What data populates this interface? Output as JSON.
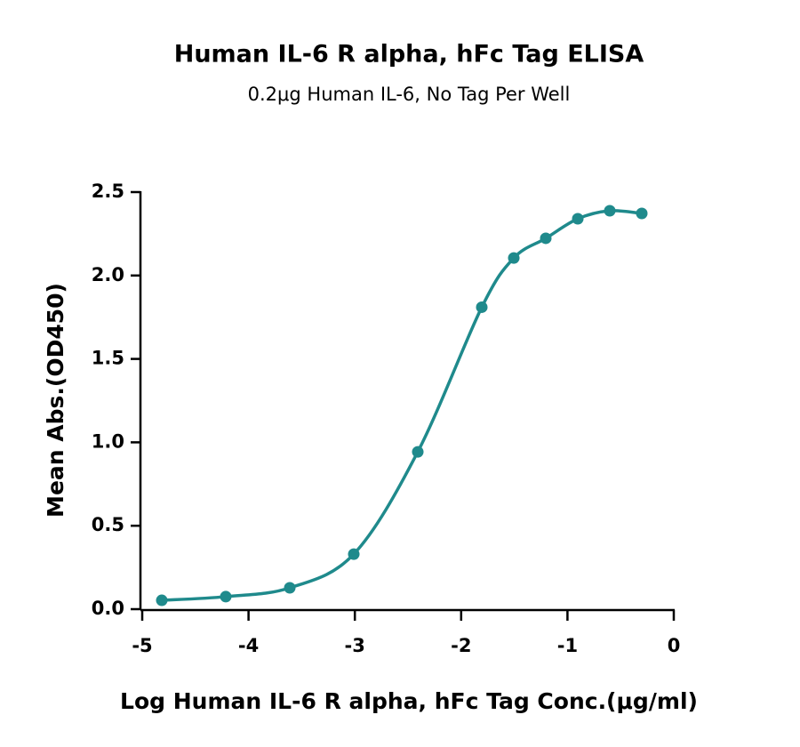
{
  "chart_data": {
    "type": "scatter",
    "title": "Human IL-6 R alpha, hFc Tag ELISA",
    "subtitle": "0.2μg Human IL-6, No Tag Per Well",
    "xlabel": "Log Human IL-6 R alpha, hFc Tag Conc.(μg/ml)",
    "ylabel": "Mean Abs.(OD450)",
    "x": [
      -4.816,
      -4.214,
      -3.612,
      -3.01,
      -2.408,
      -1.806,
      -1.505,
      -1.204,
      -0.903,
      -0.602,
      -0.301
    ],
    "values": [
      0.053,
      0.075,
      0.128,
      0.33,
      0.943,
      1.81,
      2.105,
      2.223,
      2.34,
      2.388,
      2.372
    ],
    "color": "#1f8a8c",
    "xlim": [
      -5,
      0
    ],
    "xticks": [
      -5,
      -4,
      -3,
      -2,
      -1,
      0
    ],
    "ylim": [
      0,
      2.5
    ],
    "yticks": [
      {
        "value": 0,
        "label": "0.0"
      },
      0.5,
      {
        "value": 1,
        "label": "1.0"
      },
      1.5,
      {
        "value": 2,
        "label": "2.0"
      },
      2.5
    ]
  }
}
